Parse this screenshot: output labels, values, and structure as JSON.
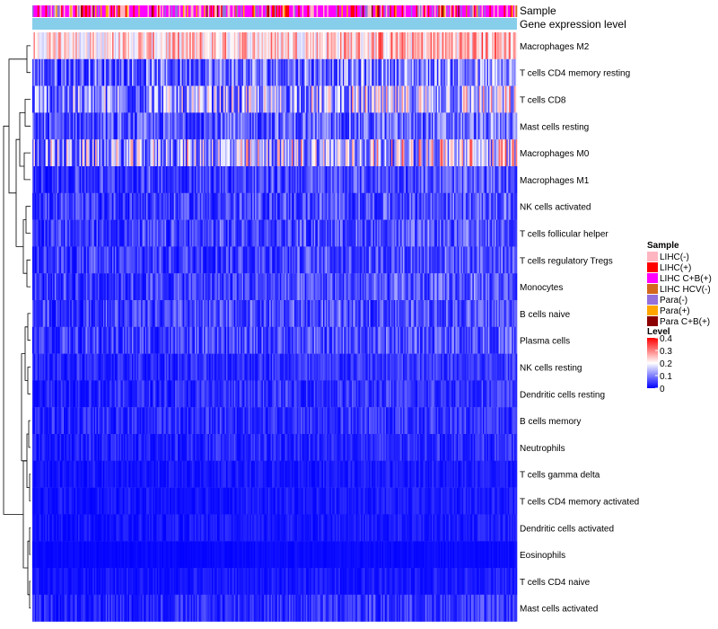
{
  "chart_data": {
    "type": "heatmap",
    "title": "",
    "clustered_rows": true,
    "n_samples": 370,
    "annotation_tracks": [
      {
        "key": "sample",
        "label": "Sample"
      },
      {
        "key": "expr",
        "label": "Gene expression level"
      }
    ],
    "rows": [
      {
        "label": "Macrophages M2",
        "level_range": [
          0.15,
          0.4
        ]
      },
      {
        "label": "T cells CD4 memory resting",
        "level_range": [
          0.0,
          0.25
        ]
      },
      {
        "label": "T cells CD8",
        "level_range": [
          0.0,
          0.35
        ]
      },
      {
        "label": "Mast cells resting",
        "level_range": [
          0.0,
          0.2
        ]
      },
      {
        "label": "Macrophages M0",
        "level_range": [
          0.0,
          0.4
        ]
      },
      {
        "label": "Macrophages M1",
        "level_range": [
          0.0,
          0.15
        ]
      },
      {
        "label": "NK cells activated",
        "level_range": [
          0.0,
          0.15
        ]
      },
      {
        "label": "T cells follicular helper",
        "level_range": [
          0.0,
          0.15
        ]
      },
      {
        "label": "T cells regulatory  Tregs",
        "level_range": [
          0.0,
          0.15
        ]
      },
      {
        "label": "Monocytes",
        "level_range": [
          0.0,
          0.15
        ]
      },
      {
        "label": "B cells naive",
        "level_range": [
          0.0,
          0.15
        ]
      },
      {
        "label": "Plasma cells",
        "level_range": [
          0.0,
          0.15
        ]
      },
      {
        "label": "NK cells resting",
        "level_range": [
          0.0,
          0.1
        ]
      },
      {
        "label": "Dendritic cells resting",
        "level_range": [
          0.0,
          0.1
        ]
      },
      {
        "label": "B cells memory",
        "level_range": [
          0.0,
          0.1
        ]
      },
      {
        "label": "Neutrophils",
        "level_range": [
          0.0,
          0.08
        ]
      },
      {
        "label": "T cells gamma delta",
        "level_range": [
          0.0,
          0.05
        ]
      },
      {
        "label": "T cells CD4 memory activated",
        "level_range": [
          0.0,
          0.05
        ]
      },
      {
        "label": "Dendritic cells activated",
        "level_range": [
          0.0,
          0.05
        ]
      },
      {
        "label": "Eosinophils",
        "level_range": [
          0.0,
          0.02
        ]
      },
      {
        "label": "T cells CD4 naive",
        "level_range": [
          0.0,
          0.05
        ]
      },
      {
        "label": "Mast cells activated",
        "level_range": [
          0.0,
          0.1
        ]
      }
    ],
    "sample_groups": [
      {
        "label": "LIHC(-)",
        "color": "#ffb6c1"
      },
      {
        "label": "LIHC(+)",
        "color": "#ff0000"
      },
      {
        "label": "LIHC C+B(+)",
        "color": "#ff00ff"
      },
      {
        "label": "LIHC HCV(-)",
        "color": "#d2691e"
      },
      {
        "label": "Para(-)",
        "color": "#9370db"
      },
      {
        "label": "Para(+)",
        "color": "#ffa500"
      },
      {
        "label": "Para C+B(+)",
        "color": "#8b0000"
      }
    ],
    "sample_group_frequency": [
      0.22,
      0.12,
      0.46,
      0.02,
      0.09,
      0.06,
      0.03
    ],
    "expression_track_color": "#87ceeb",
    "legend": {
      "sample_title": "Sample",
      "level_title": "Level",
      "level_ticks": [
        "0.4",
        "0.3",
        "0.2",
        "0.1",
        "0"
      ],
      "level_min": 0,
      "level_max": 0.4,
      "color_low": "#0000ff",
      "color_mid": "#ffffff",
      "color_high": "#ff0000",
      "placement": "right"
    }
  }
}
